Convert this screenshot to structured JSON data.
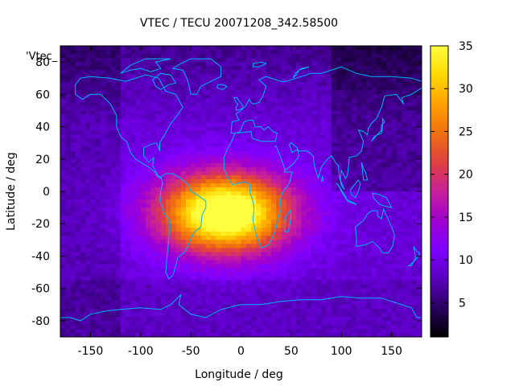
{
  "chart_data": {
    "type": "heatmap",
    "title": "VTEC / TECU 20071208_342.58500",
    "xlabel": "Longitude / deg",
    "ylabel": "Latitude / deg",
    "xlim": [
      -180,
      180
    ],
    "ylim": [
      -90,
      90
    ],
    "xticks": [
      -150,
      -100,
      -50,
      0,
      50,
      100,
      150
    ],
    "yticks": [
      -80,
      -60,
      -40,
      -20,
      0,
      20,
      40,
      60,
      80
    ],
    "colorbar": {
      "min": 1,
      "max": 35,
      "ticks": [
        5,
        10,
        15,
        20,
        25,
        30,
        35
      ]
    },
    "legend_label": "'Vtec_",
    "grid_resolution": {
      "lon_step_deg": 5,
      "lat_step_deg": 2.5
    },
    "peak": {
      "lon": -15,
      "lat": -15,
      "value": 34
    },
    "background_value": 9,
    "colormap": [
      "#000000",
      "#2a0060",
      "#5a00c0",
      "#7f00ff",
      "#a000d0",
      "#c8209a",
      "#e04040",
      "#f07010",
      "#ffa000",
      "#ffd800",
      "#ffff40"
    ],
    "coastline_color": "#00b4ff"
  }
}
